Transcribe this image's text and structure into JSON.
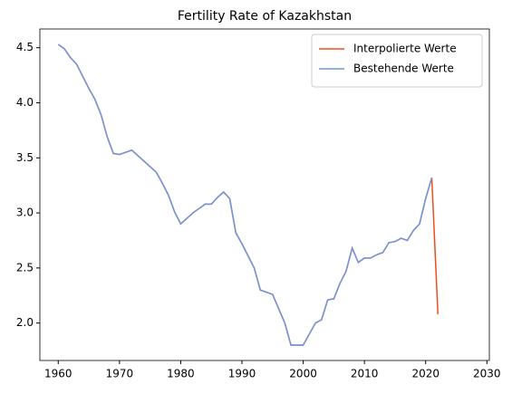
{
  "chart_data": {
    "type": "line",
    "title": "Fertility Rate of Kazakhstan",
    "x": [
      1960,
      1961,
      1962,
      1963,
      1964,
      1965,
      1966,
      1967,
      1968,
      1969,
      1970,
      1971,
      1972,
      1973,
      1974,
      1975,
      1976,
      1977,
      1978,
      1979,
      1980,
      1981,
      1982,
      1983,
      1984,
      1985,
      1986,
      1987,
      1988,
      1989,
      1990,
      1991,
      1992,
      1993,
      1994,
      1995,
      1996,
      1997,
      1998,
      1999,
      2000,
      2001,
      2002,
      2003,
      2004,
      2005,
      2006,
      2007,
      2008,
      2009,
      2010,
      2011,
      2012,
      2013,
      2014,
      2015,
      2016,
      2017,
      2018,
      2019,
      2020,
      2021,
      2022
    ],
    "series": [
      {
        "name": "Interpolierte Werte",
        "color": "#ee4e1b",
        "values": [
          4.53,
          4.49,
          4.41,
          4.35,
          4.24,
          4.13,
          4.03,
          3.89,
          3.69,
          3.54,
          3.53,
          3.55,
          3.57,
          3.52,
          3.47,
          3.42,
          3.37,
          3.27,
          3.16,
          3.01,
          2.9,
          2.95,
          3.0,
          3.04,
          3.08,
          3.08,
          3.14,
          3.19,
          3.13,
          2.82,
          2.72,
          2.61,
          2.5,
          2.3,
          2.28,
          2.26,
          2.13,
          2.0,
          1.8,
          1.8,
          1.8,
          1.9,
          2.0,
          2.03,
          2.21,
          2.22,
          2.36,
          2.47,
          2.68,
          2.55,
          2.59,
          2.59,
          2.62,
          2.64,
          2.73,
          2.74,
          2.77,
          2.75,
          2.84,
          2.9,
          3.13,
          3.32,
          2.08
        ]
      },
      {
        "name": "Bestehende Werte",
        "color": "#6f96dc",
        "values": [
          4.53,
          4.49,
          4.41,
          4.35,
          4.24,
          4.13,
          4.03,
          3.89,
          3.69,
          3.54,
          3.53,
          3.55,
          3.57,
          3.52,
          3.47,
          3.42,
          3.37,
          3.27,
          3.16,
          3.01,
          2.9,
          2.95,
          3.0,
          3.04,
          3.08,
          3.08,
          3.14,
          3.19,
          3.13,
          2.82,
          2.72,
          2.61,
          2.5,
          2.3,
          2.28,
          2.26,
          2.13,
          2.0,
          1.8,
          1.8,
          1.8,
          1.9,
          2.0,
          2.03,
          2.21,
          2.22,
          2.36,
          2.47,
          2.68,
          2.55,
          2.59,
          2.59,
          2.62,
          2.64,
          2.73,
          2.74,
          2.77,
          2.75,
          2.84,
          2.9,
          3.13,
          3.32,
          null
        ]
      }
    ],
    "xlim": [
      1957,
      2030.4
    ],
    "xticks": [
      1960,
      1970,
      1980,
      1990,
      2000,
      2010,
      2020,
      2030
    ],
    "ylim": [
      1.66,
      4.67
    ],
    "yticks": [
      {
        "value": 2,
        "label": "2.0"
      },
      2.5,
      {
        "value": 3,
        "label": "3.0"
      },
      3.5,
      {
        "value": 4,
        "label": "4.0"
      },
      4.5
    ],
    "legend": "upper right"
  }
}
